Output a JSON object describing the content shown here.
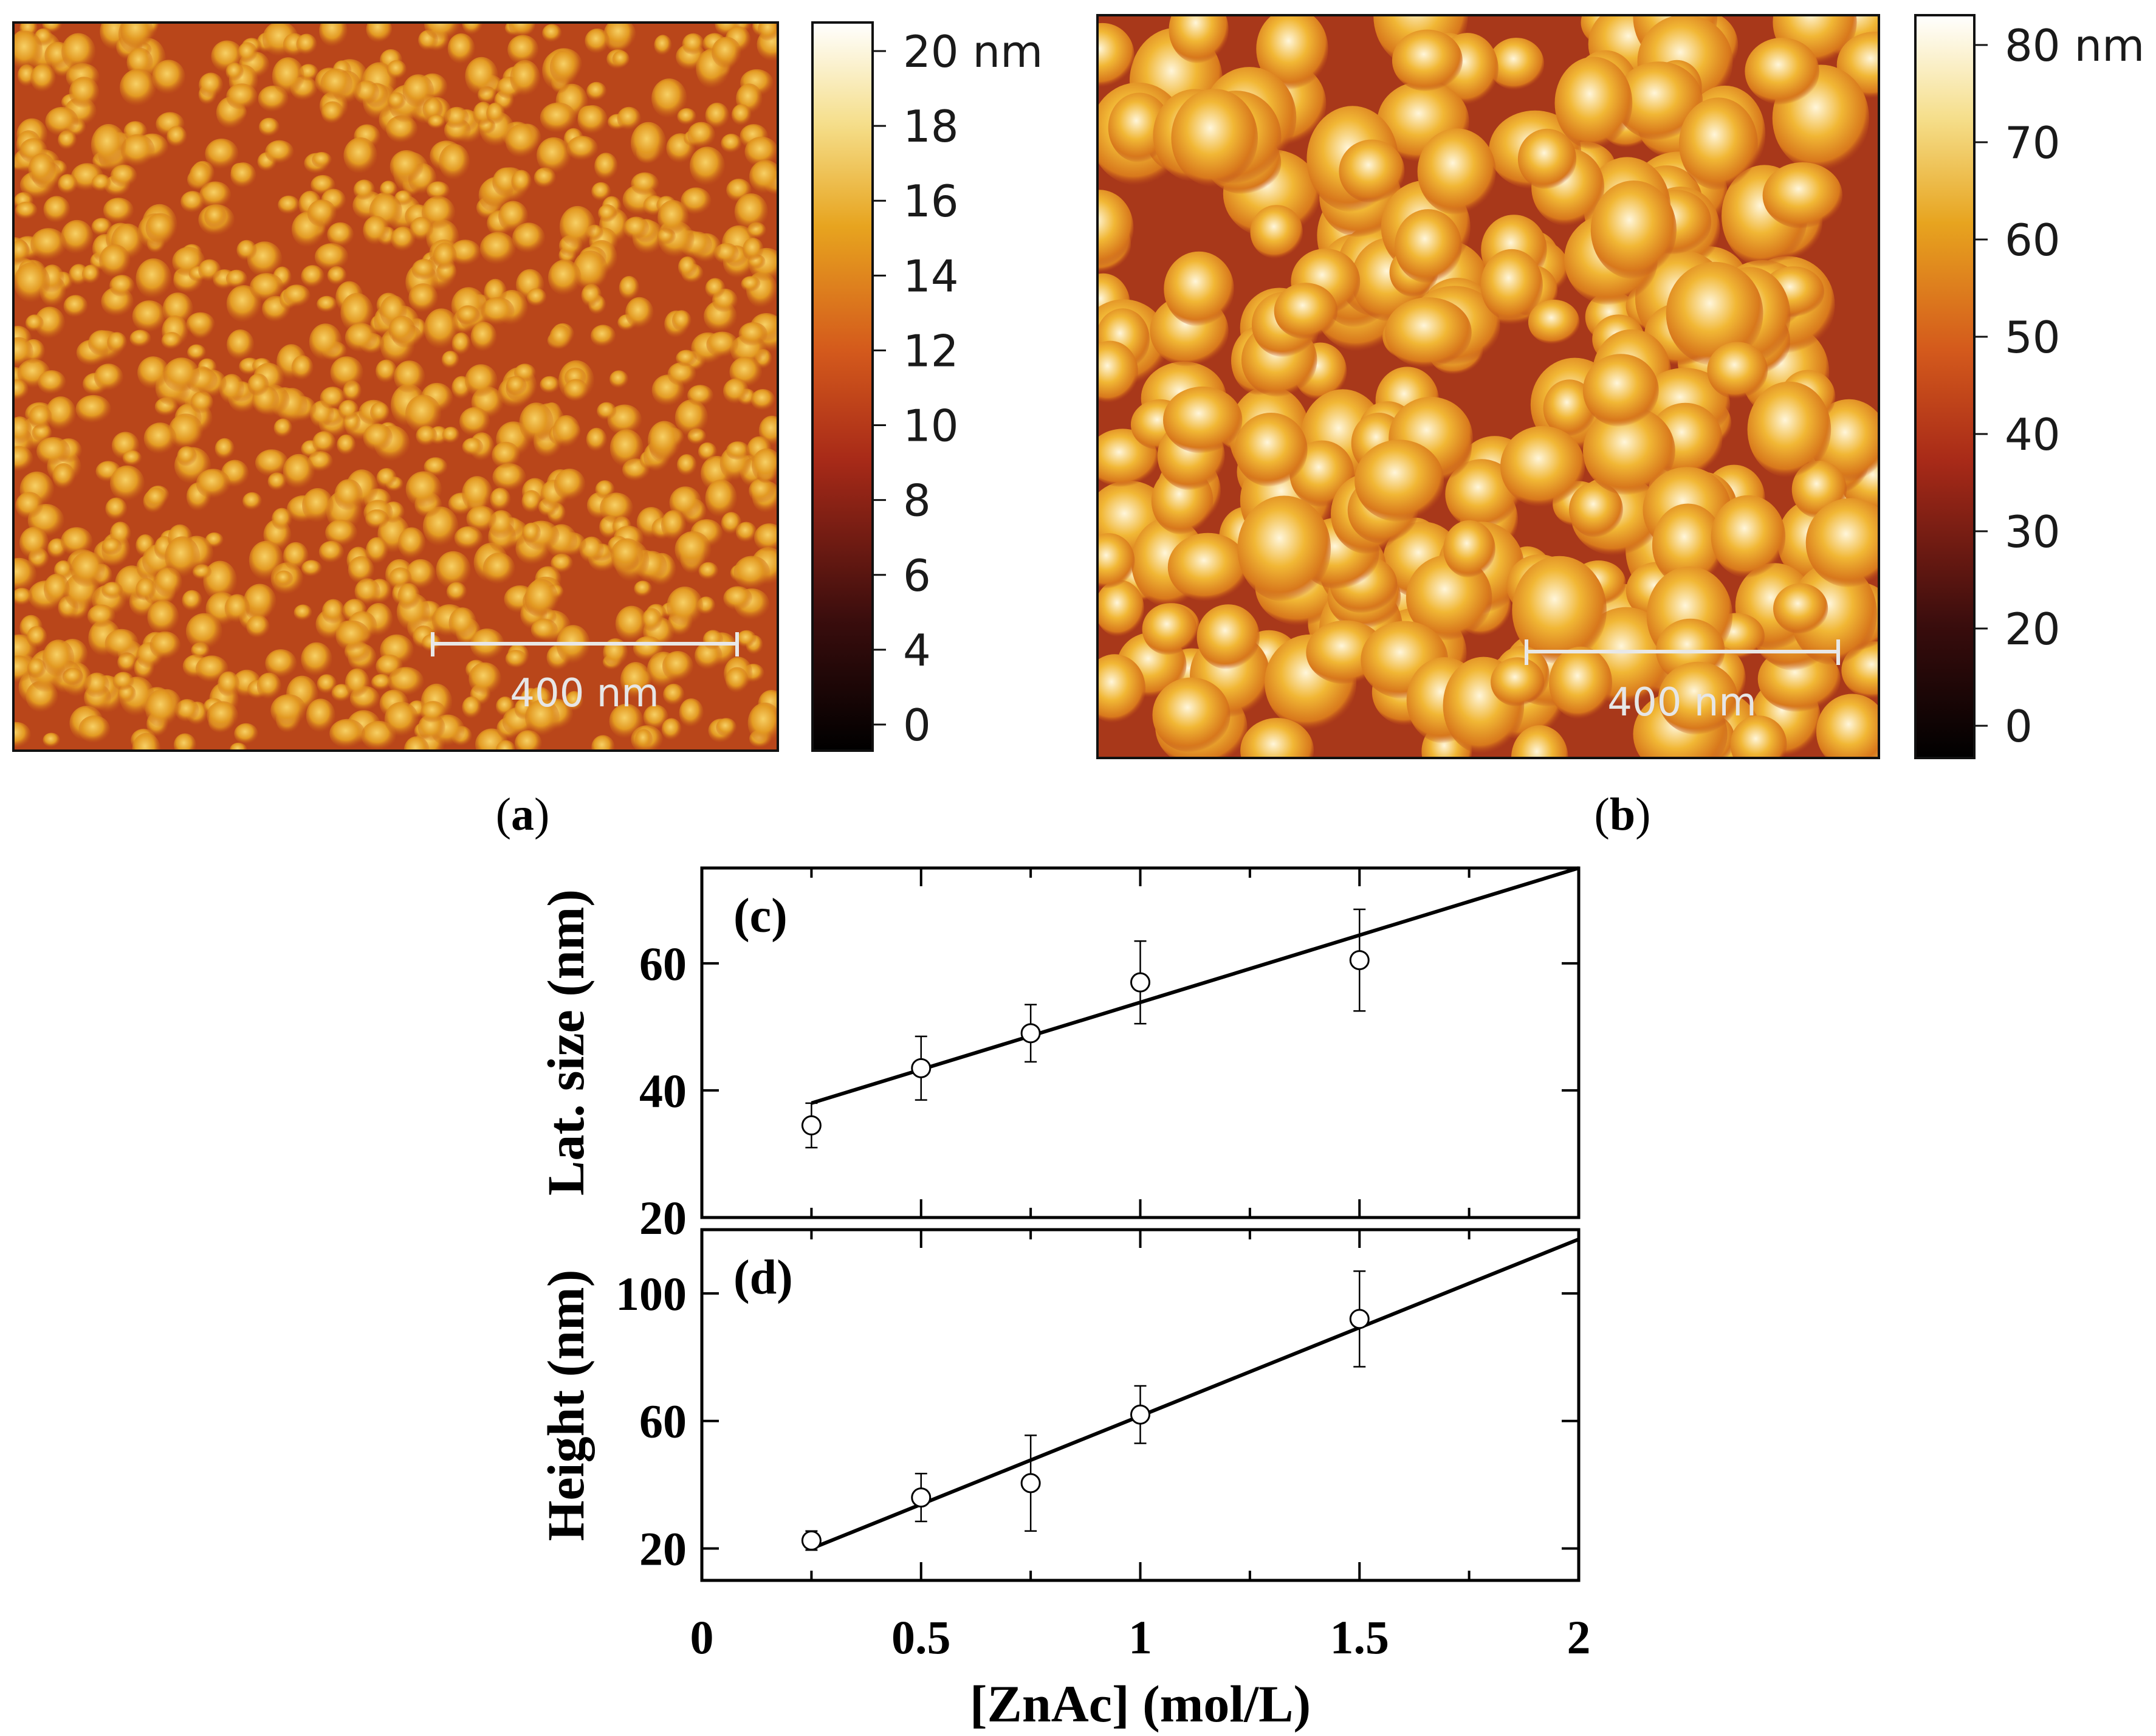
{
  "panels": {
    "a": {
      "label": "(a)",
      "colorbar_ticks": [
        "20 nm",
        "18",
        "16",
        "14",
        "12",
        "10",
        "8",
        "6",
        "4",
        "0"
      ],
      "colorbar_range": [
        0,
        20
      ],
      "scale_bar": "400 nm"
    },
    "b": {
      "label": "(b)",
      "colorbar_ticks": [
        "80 nm",
        "70",
        "60",
        "50",
        "40",
        "30",
        "20",
        "0"
      ],
      "colorbar_range": [
        0,
        80
      ],
      "scale_bar": "400 nm"
    }
  },
  "colors": {
    "afm_low": "#000000",
    "afm_mid": "#c8341a",
    "afm_high": "#e8a41c",
    "afm_top": "#ffffff"
  },
  "chart_data": [
    {
      "type": "scatter",
      "panel": "(c)",
      "title": "",
      "xlabel": "[ZnAc] (mol/L)",
      "ylabel": "Lat. size (nm)",
      "xlim": [
        0,
        2
      ],
      "ylim": [
        20,
        75
      ],
      "yticks": [
        20,
        40,
        60
      ],
      "x": [
        0.25,
        0.5,
        0.75,
        1.0,
        1.5
      ],
      "y": [
        34.5,
        43.5,
        49,
        57,
        60.5
      ],
      "yerr": [
        3.5,
        5,
        4.5,
        6.5,
        8
      ],
      "fit_line": {
        "x": [
          0.25,
          2.0
        ],
        "y": [
          38,
          75
        ]
      },
      "grid": false
    },
    {
      "type": "scatter",
      "panel": "(d)",
      "title": "",
      "xlabel": "[ZnAc] (mol/L)",
      "ylabel": "Height (nm)",
      "xlim": [
        0,
        2
      ],
      "ylim": [
        10,
        120
      ],
      "xticks": [
        "0",
        "0.5",
        "1",
        "1.5",
        "2"
      ],
      "yticks": [
        20,
        60,
        100
      ],
      "x": [
        0.25,
        0.5,
        0.75,
        1.0,
        1.5
      ],
      "y": [
        22.5,
        36,
        40.5,
        62,
        92
      ],
      "yerr": [
        3,
        7.5,
        15,
        9,
        15
      ],
      "fit_line": {
        "x": [
          0.25,
          2.0
        ],
        "y": [
          20,
          117
        ]
      },
      "grid": false
    }
  ]
}
